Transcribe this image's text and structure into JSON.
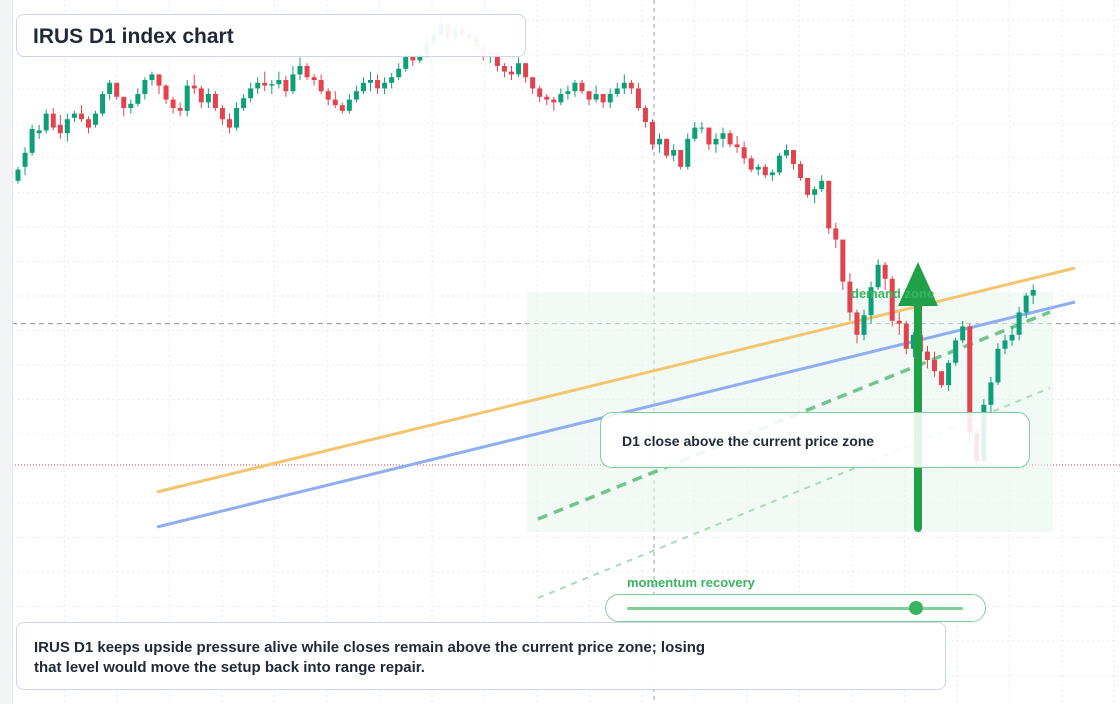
{
  "title": "IRUS D1 index chart",
  "zone_label": "demand zone",
  "callout": "D1 close above the current price zone",
  "momentum": {
    "label": "momentum recovery",
    "level": 0.86
  },
  "caption": {
    "line1": "IRUS D1 keeps upside pressure alive while closes remain above the current price zone; losing",
    "line2": "that level would move the setup back into range repair."
  },
  "colors": {
    "up": "#0c9f78",
    "down": "#e2434f",
    "accent": "#3ab462",
    "trend_orange": "#f5c46e",
    "trend_blue": "#8eaef0"
  },
  "chart_data": {
    "type": "candlestick",
    "timeframe": "D1",
    "symbol": "IRUS",
    "axes_labels_shown": false,
    "grid": true,
    "candles": [
      [
        228,
        238,
        226,
        236
      ],
      [
        238,
        252,
        232,
        248
      ],
      [
        248,
        268,
        246,
        265
      ],
      [
        262,
        268,
        258,
        264
      ],
      [
        264,
        279,
        262,
        276
      ],
      [
        276,
        280,
        264,
        266
      ],
      [
        268,
        275,
        258,
        262
      ],
      [
        262,
        276,
        256,
        272
      ],
      [
        273,
        278,
        270,
        276
      ],
      [
        276,
        282,
        270,
        272
      ],
      [
        272,
        274,
        262,
        266
      ],
      [
        268,
        278,
        266,
        276
      ],
      [
        276,
        292,
        274,
        290
      ],
      [
        290,
        300,
        286,
        298
      ],
      [
        298,
        298,
        286,
        288
      ],
      [
        288,
        288,
        274,
        280
      ],
      [
        280,
        286,
        276,
        283
      ],
      [
        283,
        294,
        281,
        290
      ],
      [
        290,
        302,
        286,
        300
      ],
      [
        300,
        306,
        296,
        304
      ],
      [
        304,
        304,
        290,
        296
      ],
      [
        296,
        297,
        283,
        286
      ],
      [
        286,
        288,
        276,
        280
      ],
      [
        280,
        284,
        274,
        278
      ],
      [
        278,
        300,
        274,
        296
      ],
      [
        296,
        304,
        290,
        294
      ],
      [
        294,
        296,
        280,
        284
      ],
      [
        284,
        294,
        280,
        290
      ],
      [
        290,
        292,
        278,
        280
      ],
      [
        280,
        282,
        268,
        272
      ],
      [
        272,
        276,
        262,
        266
      ],
      [
        266,
        284,
        264,
        280
      ],
      [
        280,
        290,
        278,
        287
      ],
      [
        287,
        298,
        284,
        294
      ],
      [
        294,
        302,
        290,
        298
      ],
      [
        298,
        306,
        292,
        296
      ],
      [
        296,
        300,
        290,
        297
      ],
      [
        297,
        306,
        294,
        300
      ],
      [
        300,
        303,
        288,
        292
      ],
      [
        292,
        310,
        290,
        304
      ],
      [
        304,
        316,
        300,
        310
      ],
      [
        310,
        312,
        300,
        302
      ],
      [
        302,
        304,
        296,
        300
      ],
      [
        300,
        304,
        290,
        292
      ],
      [
        292,
        294,
        282,
        286
      ],
      [
        286,
        292,
        280,
        282
      ],
      [
        282,
        284,
        276,
        278
      ],
      [
        278,
        290,
        276,
        286
      ],
      [
        286,
        296,
        284,
        292
      ],
      [
        292,
        302,
        290,
        298
      ],
      [
        298,
        306,
        292,
        300
      ],
      [
        300,
        304,
        290,
        294
      ],
      [
        294,
        302,
        290,
        298
      ],
      [
        298,
        305,
        294,
        302
      ],
      [
        302,
        312,
        300,
        308
      ],
      [
        308,
        320,
        306,
        318
      ],
      [
        318,
        318,
        310,
        314
      ],
      [
        314,
        322,
        312,
        318
      ],
      [
        318,
        330,
        316,
        326
      ],
      [
        326,
        336,
        322,
        332
      ],
      [
        332,
        344,
        330,
        340
      ],
      [
        340,
        340,
        326,
        330
      ],
      [
        330,
        338,
        328,
        336
      ],
      [
        336,
        338,
        330,
        332
      ],
      [
        332,
        335,
        326,
        330
      ],
      [
        330,
        332,
        320,
        324
      ],
      [
        324,
        326,
        314,
        318
      ],
      [
        318,
        322,
        312,
        320
      ],
      [
        320,
        320,
        306,
        310
      ],
      [
        310,
        312,
        302,
        306
      ],
      [
        306,
        310,
        300,
        304
      ],
      [
        304,
        316,
        302,
        312
      ],
      [
        312,
        312,
        298,
        302
      ],
      [
        302,
        302,
        290,
        294
      ],
      [
        294,
        296,
        284,
        288
      ],
      [
        288,
        290,
        282,
        286
      ],
      [
        286,
        288,
        278,
        284
      ],
      [
        284,
        294,
        282,
        290
      ],
      [
        290,
        296,
        286,
        292
      ],
      [
        292,
        300,
        288,
        298
      ],
      [
        298,
        300,
        290,
        292
      ],
      [
        292,
        292,
        282,
        286
      ],
      [
        286,
        296,
        284,
        290
      ],
      [
        290,
        290,
        280,
        284
      ],
      [
        284,
        294,
        280,
        290
      ],
      [
        290,
        298,
        288,
        294
      ],
      [
        294,
        304,
        290,
        298
      ],
      [
        298,
        300,
        290,
        294
      ],
      [
        294,
        298,
        278,
        280
      ],
      [
        280,
        282,
        266,
        270
      ],
      [
        270,
        272,
        250,
        254
      ],
      [
        254,
        262,
        248,
        258
      ],
      [
        258,
        258,
        244,
        246
      ],
      [
        246,
        254,
        242,
        250
      ],
      [
        250,
        250,
        236,
        238
      ],
      [
        238,
        262,
        236,
        258
      ],
      [
        258,
        270,
        256,
        266
      ],
      [
        266,
        270,
        262,
        266
      ],
      [
        266,
        266,
        250,
        254
      ],
      [
        254,
        262,
        248,
        258
      ],
      [
        258,
        266,
        252,
        262
      ],
      [
        262,
        264,
        252,
        254
      ],
      [
        254,
        260,
        248,
        252
      ],
      [
        252,
        256,
        240,
        244
      ],
      [
        244,
        246,
        234,
        236
      ],
      [
        236,
        240,
        232,
        238
      ],
      [
        238,
        240,
        230,
        232
      ],
      [
        232,
        236,
        228,
        234
      ],
      [
        234,
        248,
        232,
        246
      ],
      [
        246,
        254,
        244,
        250
      ],
      [
        250,
        250,
        236,
        240
      ],
      [
        240,
        242,
        228,
        230
      ],
      [
        230,
        230,
        216,
        218
      ],
      [
        218,
        224,
        212,
        222
      ],
      [
        222,
        232,
        220,
        228
      ],
      [
        228,
        228,
        190,
        194
      ],
      [
        194,
        198,
        180,
        186
      ],
      [
        186,
        186,
        150,
        156
      ],
      [
        156,
        162,
        128,
        134
      ],
      [
        134,
        136,
        112,
        118
      ],
      [
        118,
        136,
        114,
        132
      ],
      [
        132,
        156,
        126,
        152
      ],
      [
        152,
        172,
        150,
        168
      ],
      [
        168,
        170,
        150,
        158
      ],
      [
        158,
        160,
        124,
        128
      ],
      [
        128,
        134,
        118,
        126
      ],
      [
        126,
        128,
        104,
        108
      ],
      [
        108,
        120,
        102,
        118
      ],
      [
        118,
        118,
        100,
        106
      ],
      [
        106,
        110,
        94,
        100
      ],
      [
        100,
        106,
        88,
        92
      ],
      [
        92,
        92,
        80,
        82
      ],
      [
        82,
        100,
        78,
        98
      ],
      [
        98,
        116,
        96,
        114
      ],
      [
        114,
        128,
        112,
        124
      ],
      [
        124,
        126,
        40,
        48
      ],
      [
        48,
        50,
        24,
        28
      ],
      [
        28,
        72,
        26,
        68
      ],
      [
        68,
        88,
        62,
        84
      ],
      [
        84,
        112,
        82,
        108
      ],
      [
        108,
        118,
        104,
        114
      ],
      [
        114,
        124,
        110,
        118
      ],
      [
        118,
        138,
        114,
        134
      ],
      [
        134,
        148,
        130,
        146
      ],
      [
        146,
        154,
        140,
        150
      ]
    ],
    "overlays": {
      "current_price_zone_line": 178,
      "reference_price_line": 126,
      "trendlines": [
        "orange ascending",
        "blue ascending",
        "green dashed channel"
      ],
      "signal": "upward arrow from demand zone"
    }
  }
}
